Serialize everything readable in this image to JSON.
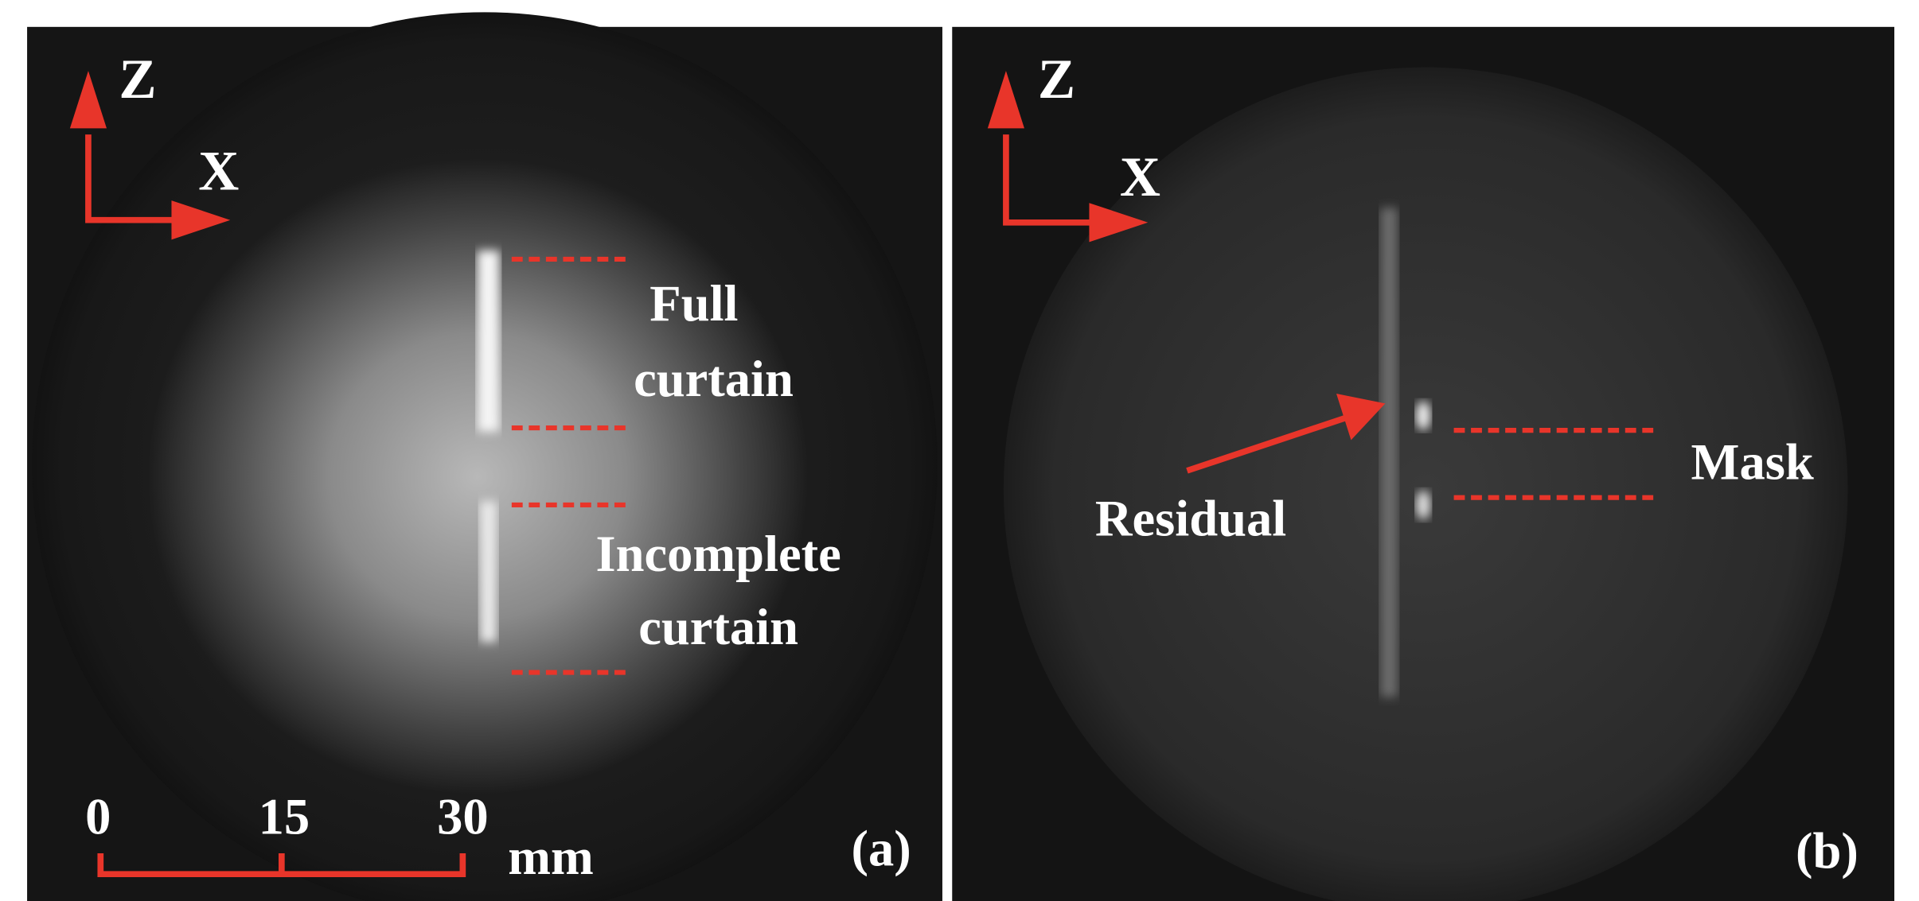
{
  "panel_a": {
    "axis_z": "Z",
    "axis_x": "X",
    "label_full": [
      "Full",
      "curtain"
    ],
    "label_incomplete": [
      "Incomplete",
      "curtain"
    ],
    "scale": [
      0,
      15,
      30
    ],
    "unit": "mm",
    "tag": "(a)"
  },
  "panel_b": {
    "axis_z": "Z",
    "axis_x": "X",
    "label_residual": "Residual",
    "label_mask": "Mask",
    "tag": "(b)"
  }
}
